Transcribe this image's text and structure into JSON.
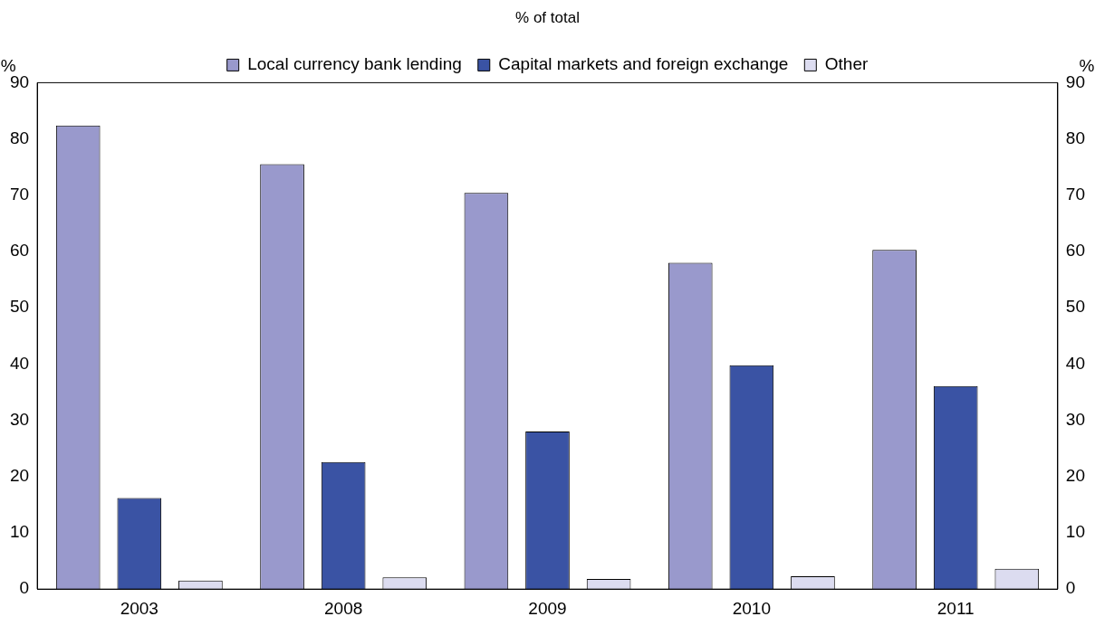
{
  "chart_data": {
    "type": "bar",
    "title": "% of total",
    "ylabel": "%",
    "y2label": "%",
    "categories": [
      "2003",
      "2008",
      "2009",
      "2010",
      "2011"
    ],
    "series": [
      {
        "name": "Local currency bank lending",
        "color": "#9999cc",
        "values": [
          82.4,
          75.5,
          70.4,
          58.0,
          60.3
        ]
      },
      {
        "name": "Capital markets and foreign exchange",
        "color": "#3a53a4",
        "values": [
          16.2,
          22.6,
          28.0,
          39.8,
          36.1
        ]
      },
      {
        "name": "Other",
        "color": "#dcdcf0",
        "values": [
          1.5,
          2.1,
          1.8,
          2.3,
          3.6
        ]
      }
    ],
    "ylim": [
      0,
      90
    ],
    "yticks": [
      0,
      10,
      20,
      30,
      40,
      50,
      60,
      70,
      80,
      90
    ],
    "y2lim": [
      0,
      90
    ],
    "y2ticks": [
      0,
      10,
      20,
      30,
      40,
      50,
      60,
      70,
      80,
      90
    ],
    "grid": false,
    "legend": "top"
  }
}
